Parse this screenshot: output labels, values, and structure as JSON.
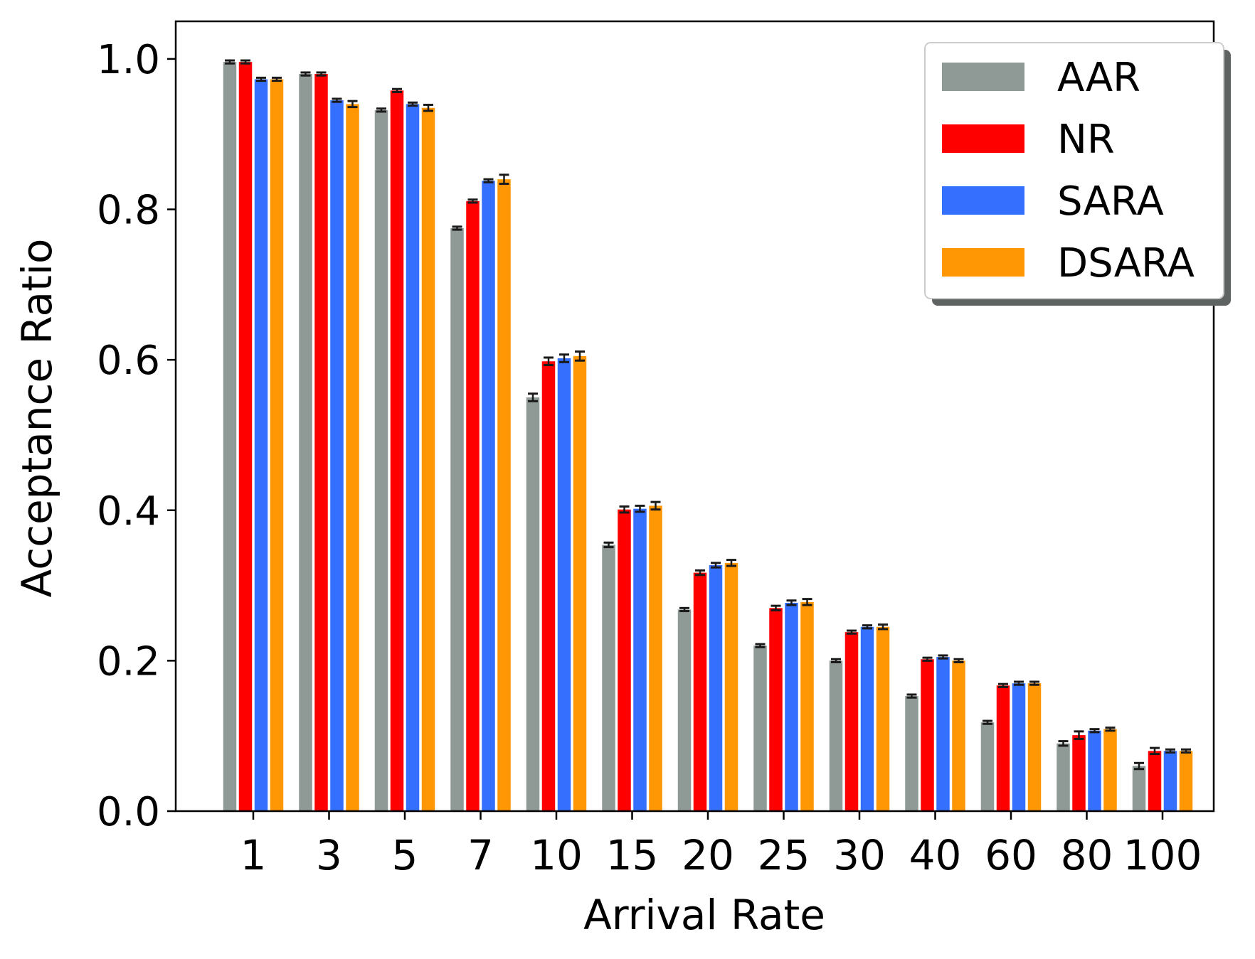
{
  "chart_data": {
    "type": "bar",
    "xlabel": "Arrival Rate",
    "ylabel": "Acceptance Ratio",
    "ylim": [
      0,
      1.05
    ],
    "yticks": [
      "0.0",
      "0.2",
      "0.4",
      "0.6",
      "0.8",
      "1.0"
    ],
    "categories": [
      "1",
      "3",
      "5",
      "7",
      "10",
      "15",
      "20",
      "25",
      "30",
      "40",
      "60",
      "80",
      "100"
    ],
    "legend_position": "top-right",
    "error_bars": true,
    "series": [
      {
        "name": "AAR",
        "color": "#8f9996",
        "values": [
          0.996,
          0.98,
          0.932,
          0.775,
          0.55,
          0.354,
          0.268,
          0.22,
          0.2,
          0.153,
          0.118,
          0.09,
          0.06
        ],
        "errors": [
          0.002,
          0.002,
          0.002,
          0.002,
          0.005,
          0.003,
          0.002,
          0.002,
          0.002,
          0.002,
          0.002,
          0.003,
          0.004
        ]
      },
      {
        "name": "NR",
        "color": "#ff0000",
        "values": [
          0.996,
          0.98,
          0.958,
          0.811,
          0.598,
          0.401,
          0.317,
          0.27,
          0.238,
          0.202,
          0.167,
          0.101,
          0.08
        ],
        "errors": [
          0.002,
          0.002,
          0.002,
          0.002,
          0.005,
          0.004,
          0.003,
          0.003,
          0.002,
          0.002,
          0.002,
          0.005,
          0.004
        ]
      },
      {
        "name": "SARA",
        "color": "#356ffd",
        "values": [
          0.973,
          0.945,
          0.94,
          0.838,
          0.602,
          0.402,
          0.327,
          0.277,
          0.245,
          0.205,
          0.17,
          0.107,
          0.08
        ],
        "errors": [
          0.002,
          0.002,
          0.002,
          0.002,
          0.005,
          0.004,
          0.003,
          0.003,
          0.002,
          0.002,
          0.002,
          0.002,
          0.002
        ]
      },
      {
        "name": "DSARA",
        "color": "#ff9705",
        "values": [
          0.973,
          0.94,
          0.935,
          0.84,
          0.605,
          0.406,
          0.33,
          0.278,
          0.245,
          0.2,
          0.17,
          0.109,
          0.08
        ],
        "errors": [
          0.002,
          0.004,
          0.004,
          0.006,
          0.006,
          0.005,
          0.004,
          0.004,
          0.003,
          0.002,
          0.002,
          0.002,
          0.002
        ]
      }
    ]
  }
}
